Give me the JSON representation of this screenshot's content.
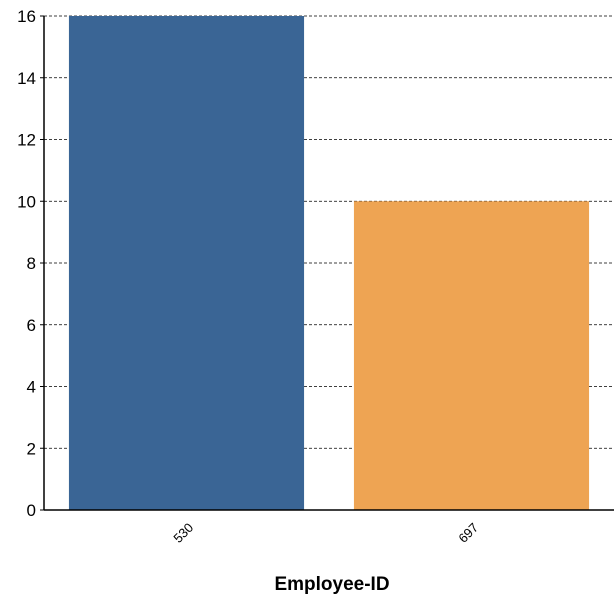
{
  "chart_data": {
    "type": "bar",
    "categories": [
      "530",
      "697"
    ],
    "values": [
      16,
      10
    ],
    "colors": [
      "#3a6595",
      "#eea453"
    ],
    "title": "",
    "xlabel": "Employee-ID",
    "ylabel": "",
    "ylim": [
      0,
      16
    ],
    "yticks": [
      0,
      2,
      4,
      6,
      8,
      10,
      12,
      14,
      16
    ],
    "grid": "horizontal-dashed",
    "legend": "none"
  }
}
